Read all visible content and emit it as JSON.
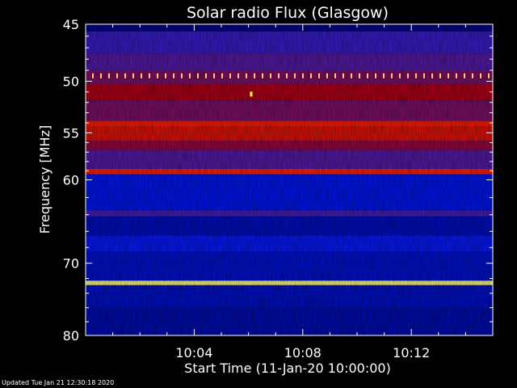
{
  "chart_data": {
    "type": "heatmap",
    "title": "Solar radio Flux (Glasgow)",
    "xlabel": "Start Time (11-Jan-20 10:00:00)",
    "ylabel": "Frequency [MHz]",
    "x_ticks": [
      "10:04",
      "10:08",
      "10:12"
    ],
    "x_tick_minutes": [
      4,
      8,
      12
    ],
    "xlim_minutes": [
      0,
      15
    ],
    "y_ticks": [
      45,
      50,
      55,
      60,
      70,
      80
    ],
    "ylim": [
      45,
      80
    ],
    "y_scale": "log",
    "colormap": [
      "#000060",
      "#0018ff",
      "#4a1db5",
      "#b00018",
      "#ff2000",
      "#ffff80"
    ],
    "bands": [
      {
        "from": 45,
        "to": 45.6,
        "level": 0.05
      },
      {
        "from": 45.6,
        "to": 47.5,
        "level": 0.35
      },
      {
        "from": 47.5,
        "to": 49,
        "level": 0.42
      },
      {
        "from": 49,
        "to": 50.3,
        "level": 0.5
      },
      {
        "from": 50.3,
        "to": 51.8,
        "level": 0.6
      },
      {
        "from": 51.8,
        "to": 53.8,
        "level": 0.5
      },
      {
        "from": 53.8,
        "to": 54.4,
        "level": 0.78
      },
      {
        "from": 54.4,
        "to": 55.8,
        "level": 0.72
      },
      {
        "from": 55.8,
        "to": 56.8,
        "level": 0.55
      },
      {
        "from": 56.8,
        "to": 58.8,
        "level": 0.42
      },
      {
        "from": 58.8,
        "to": 59.4,
        "level": 0.8
      },
      {
        "from": 59.4,
        "to": 63.5,
        "level": 0.18
      },
      {
        "from": 63.5,
        "to": 64.2,
        "level": 0.4
      },
      {
        "from": 64.2,
        "to": 66.5,
        "level": 0.12
      },
      {
        "from": 66.5,
        "to": 68.5,
        "level": 0.22
      },
      {
        "from": 68.5,
        "to": 72.3,
        "level": 0.14
      },
      {
        "from": 72.3,
        "to": 72.9,
        "level": 1.0
      },
      {
        "from": 72.9,
        "to": 76,
        "level": 0.13
      },
      {
        "from": 76,
        "to": 80,
        "level": 0.1
      }
    ],
    "burst_line_mhz": 49.5,
    "spike": {
      "minute": 6.1,
      "mhz": 51.2
    }
  },
  "footer": {
    "updated": "Updated Tue Jan 21 12:30:18 2020"
  }
}
